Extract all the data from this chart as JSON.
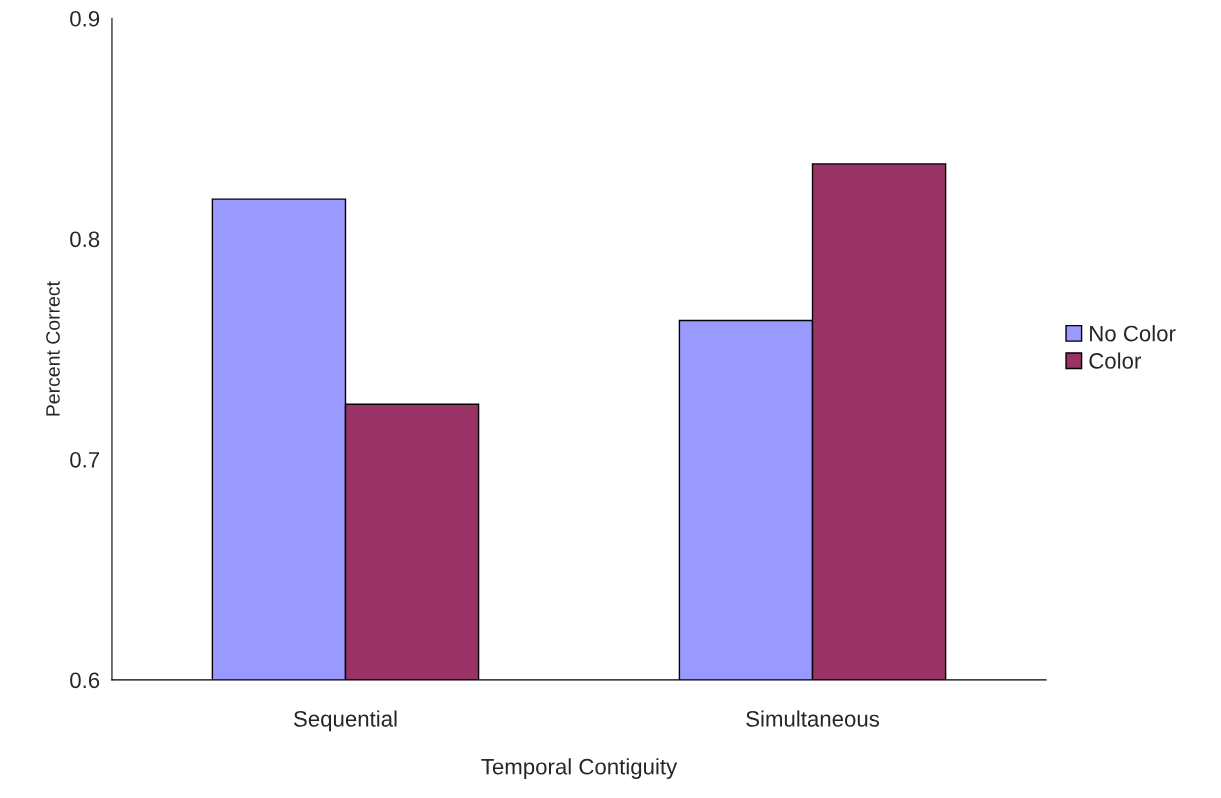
{
  "chart_data": {
    "type": "bar",
    "xlabel": "Temporal Contiguity",
    "ylabel": "Percent Correct",
    "categories": [
      "Sequential",
      "Simultaneous"
    ],
    "series": [
      {
        "name": "No Color",
        "color": "#9999ff",
        "values": [
          0.818,
          0.763
        ]
      },
      {
        "name": "Color",
        "color": "#993366",
        "values": [
          0.725,
          0.834
        ]
      }
    ],
    "ylim": [
      0.6,
      0.9
    ],
    "yticks": [
      0.6,
      0.7,
      0.8,
      0.9
    ],
    "grid": false,
    "legend": "right"
  }
}
